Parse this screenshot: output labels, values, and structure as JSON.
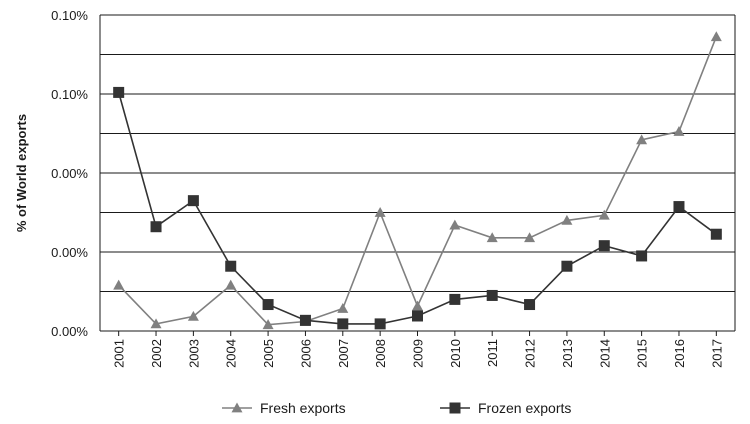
{
  "chart_data": {
    "type": "line",
    "title": "",
    "xlabel": "",
    "ylabel": "% of World exports",
    "ylim": [
      0,
      0.08
    ],
    "y_tick_labels": [
      "0.00%",
      "0.00%",
      "0.00%",
      "0.10%",
      "0.10%",
      "0.10%",
      "0.10%"
    ],
    "categories": [
      "2001",
      "2002",
      "2003",
      "2004",
      "2005",
      "2006",
      "2007",
      "2008",
      "2009",
      "2010",
      "2011",
      "2012",
      "2013",
      "2014",
      "2015",
      "2016",
      "2017"
    ],
    "grid": "horizontal",
    "legend_position": "bottom",
    "series": [
      {
        "name": "Fresh exports",
        "marker": "triangle",
        "color": "#808080",
        "values": [
          0.0116,
          0.0018,
          0.0037,
          0.0116,
          0.0016,
          0.0024,
          0.0057,
          0.03,
          0.0063,
          0.0268,
          0.0236,
          0.0236,
          0.028,
          0.0293,
          0.0484,
          0.0505,
          0.0745
        ]
      },
      {
        "name": "Frozen exports",
        "marker": "square",
        "color": "#333333",
        "values": [
          0.0604,
          0.0264,
          0.033,
          0.0164,
          0.0067,
          0.0027,
          0.0018,
          0.0018,
          0.0038,
          0.008,
          0.009,
          0.0067,
          0.0164,
          0.0216,
          0.019,
          0.0315,
          0.0245
        ]
      }
    ]
  }
}
